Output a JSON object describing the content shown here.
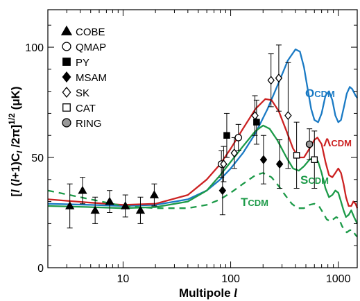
{
  "chart_data": {
    "type": "scatter",
    "title": "",
    "xlabel": "Multipole l",
    "ylabel": "[l (l+1)C_l /2π]^1/2 (μK)",
    "x_scale": "log",
    "xlim": [
      2,
      1500
    ],
    "ylim": [
      0,
      117
    ],
    "xticks": [
      10,
      100,
      1000
    ],
    "yticks": [
      0,
      50,
      100
    ],
    "grid": false,
    "legend_position": "top-left",
    "legend": [
      "COBE",
      "QMAP",
      "PY",
      "MSAM",
      "SK",
      "CAT",
      "RING"
    ],
    "data_series": [
      {
        "name": "COBE",
        "marker": "triangle-filled",
        "points": [
          {
            "x": 3.2,
            "y": 28,
            "err": 10
          },
          {
            "x": 4.2,
            "y": 35,
            "err": 6
          },
          {
            "x": 5.5,
            "y": 26,
            "err": 6
          },
          {
            "x": 7.5,
            "y": 30,
            "err": 5
          },
          {
            "x": 10.5,
            "y": 28,
            "err": 5
          },
          {
            "x": 14.5,
            "y": 26,
            "err": 6
          },
          {
            "x": 19.5,
            "y": 33,
            "err": 5
          }
        ]
      },
      {
        "name": "QMAP",
        "marker": "circle-open",
        "points": [
          {
            "x": 82,
            "y": 47,
            "err": 6
          },
          {
            "x": 118,
            "y": 59,
            "err": 6
          }
        ]
      },
      {
        "name": "PY",
        "marker": "square-filled",
        "points": [
          {
            "x": 92,
            "y": 60,
            "err": 10
          },
          {
            "x": 174,
            "y": 66,
            "err": 10
          }
        ]
      },
      {
        "name": "MSAM",
        "marker": "diamond-filled",
        "points": [
          {
            "x": 84,
            "y": 35,
            "err": 11
          },
          {
            "x": 202,
            "y": 49,
            "err": 11
          },
          {
            "x": 285,
            "y": 47,
            "err": 11
          }
        ]
      },
      {
        "name": "SK",
        "marker": "diamond-open",
        "points": [
          {
            "x": 86,
            "y": 47,
            "err": 8
          },
          {
            "x": 108,
            "y": 52,
            "err": 7
          },
          {
            "x": 168,
            "y": 69,
            "err": 9
          },
          {
            "x": 237,
            "y": 85,
            "err": 12
          },
          {
            "x": 280,
            "y": 86,
            "err": 15
          },
          {
            "x": 342,
            "y": 69,
            "err": 24
          }
        ]
      },
      {
        "name": "CAT",
        "marker": "square-open",
        "points": [
          {
            "x": 410,
            "y": 51,
            "err": 15
          },
          {
            "x": 600,
            "y": 49,
            "err": 13
          }
        ]
      },
      {
        "name": "RING",
        "marker": "circle-gray",
        "points": [
          {
            "x": 540,
            "y": 56,
            "err": 7
          }
        ]
      }
    ],
    "model_curves": [
      {
        "label": "OCDM",
        "color": "#1a7ac4",
        "dash": "solid",
        "points": [
          [
            2,
            29
          ],
          [
            5,
            28.5
          ],
          [
            10,
            28
          ],
          [
            20,
            28.5
          ],
          [
            40,
            31
          ],
          [
            60,
            35
          ],
          [
            80,
            40
          ],
          [
            100,
            45
          ],
          [
            130,
            52
          ],
          [
            170,
            61
          ],
          [
            220,
            72
          ],
          [
            280,
            84
          ],
          [
            340,
            94
          ],
          [
            400,
            99
          ],
          [
            440,
            98
          ],
          [
            480,
            91
          ],
          [
            520,
            81
          ],
          [
            560,
            72
          ],
          [
            600,
            67
          ],
          [
            650,
            66
          ],
          [
            700,
            70
          ],
          [
            760,
            78
          ],
          [
            820,
            80
          ],
          [
            880,
            76
          ],
          [
            940,
            69
          ],
          [
            1000,
            66
          ],
          [
            1060,
            67
          ],
          [
            1130,
            73
          ],
          [
            1200,
            79
          ],
          [
            1280,
            82
          ],
          [
            1350,
            81
          ],
          [
            1450,
            78
          ],
          [
            1500,
            77
          ]
        ]
      },
      {
        "label": "ΛCDM",
        "color": "#cc2222",
        "dash": "solid",
        "points": [
          [
            2,
            31
          ],
          [
            5,
            29.5
          ],
          [
            10,
            28.5
          ],
          [
            20,
            29
          ],
          [
            40,
            33
          ],
          [
            60,
            40
          ],
          [
            80,
            47
          ],
          [
            100,
            54
          ],
          [
            130,
            63
          ],
          [
            170,
            72
          ],
          [
            210,
            76.5
          ],
          [
            240,
            76
          ],
          [
            280,
            71
          ],
          [
            330,
            62
          ],
          [
            380,
            54
          ],
          [
            430,
            50
          ],
          [
            480,
            50
          ],
          [
            540,
            54
          ],
          [
            600,
            58
          ],
          [
            640,
            59
          ],
          [
            700,
            56
          ],
          [
            760,
            48
          ],
          [
            820,
            42
          ],
          [
            880,
            41
          ],
          [
            940,
            43
          ],
          [
            1000,
            45
          ],
          [
            1060,
            43
          ],
          [
            1120,
            38
          ],
          [
            1180,
            32
          ],
          [
            1250,
            28
          ],
          [
            1320,
            28
          ],
          [
            1380,
            30
          ],
          [
            1450,
            29
          ],
          [
            1500,
            27
          ]
        ]
      },
      {
        "label": "SCDM",
        "color": "#1c9a48",
        "dash": "solid",
        "points": [
          [
            2,
            28
          ],
          [
            5,
            27.5
          ],
          [
            10,
            27
          ],
          [
            20,
            27.5
          ],
          [
            40,
            30
          ],
          [
            60,
            35
          ],
          [
            80,
            42
          ],
          [
            100,
            48
          ],
          [
            130,
            55
          ],
          [
            170,
            62
          ],
          [
            200,
            64.5
          ],
          [
            230,
            63
          ],
          [
            270,
            58
          ],
          [
            330,
            50
          ],
          [
            380,
            45
          ],
          [
            430,
            44
          ],
          [
            480,
            46
          ],
          [
            540,
            49
          ],
          [
            600,
            50
          ],
          [
            650,
            48
          ],
          [
            700,
            43
          ],
          [
            760,
            36
          ],
          [
            820,
            32
          ],
          [
            880,
            33
          ],
          [
            940,
            35
          ],
          [
            1000,
            34
          ],
          [
            1060,
            30
          ],
          [
            1120,
            26
          ],
          [
            1180,
            23
          ],
          [
            1250,
            24
          ],
          [
            1320,
            26
          ],
          [
            1400,
            23
          ],
          [
            1500,
            20
          ]
        ]
      },
      {
        "label": "TCDM",
        "color": "#1c9a48",
        "dash": "dashed",
        "points": [
          [
            2,
            35
          ],
          [
            5,
            31
          ],
          [
            10,
            28
          ],
          [
            20,
            27
          ],
          [
            40,
            27
          ],
          [
            60,
            28.5
          ],
          [
            80,
            31
          ],
          [
            100,
            34
          ],
          [
            130,
            38
          ],
          [
            170,
            42
          ],
          [
            200,
            43
          ],
          [
            240,
            41
          ],
          [
            280,
            37
          ],
          [
            320,
            33
          ],
          [
            370,
            29
          ],
          [
            420,
            27
          ],
          [
            480,
            27
          ],
          [
            540,
            28.5
          ],
          [
            600,
            29
          ],
          [
            660,
            28
          ],
          [
            720,
            25
          ],
          [
            780,
            22
          ],
          [
            840,
            21
          ],
          [
            900,
            22
          ],
          [
            960,
            23
          ],
          [
            1020,
            22
          ],
          [
            1080,
            19
          ],
          [
            1140,
            17
          ],
          [
            1200,
            16
          ],
          [
            1280,
            17
          ],
          [
            1360,
            17
          ],
          [
            1440,
            15
          ],
          [
            1500,
            14
          ]
        ]
      }
    ]
  }
}
